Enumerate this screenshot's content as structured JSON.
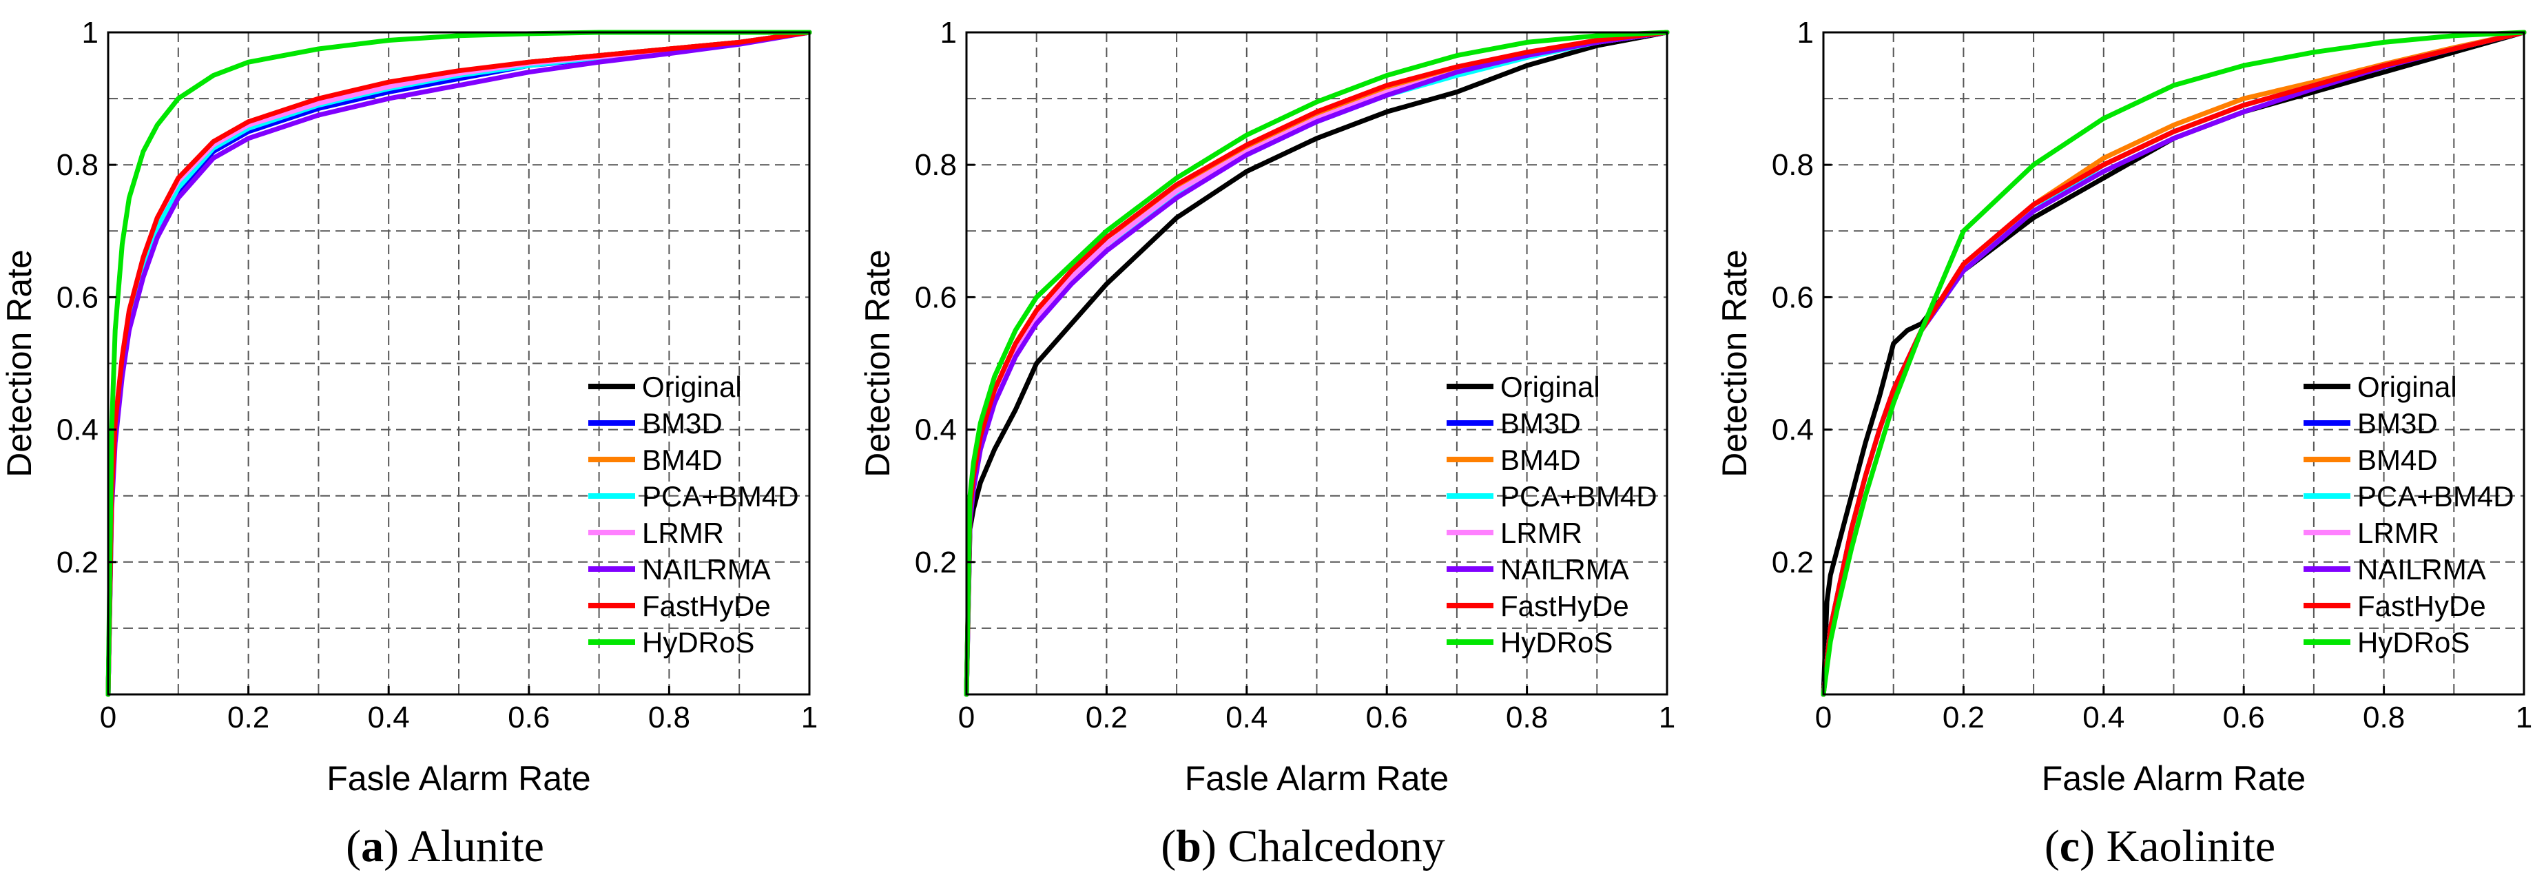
{
  "chart_data": [
    {
      "type": "line",
      "caption_letter": "(a)",
      "caption_title": "Alunite",
      "xlabel": "Fasle Alarm Rate",
      "ylabel": "Detection Rate",
      "xlim": [
        0,
        1
      ],
      "ylim": [
        0,
        1
      ],
      "grid": true,
      "legend_position": "bottom-right",
      "x_ticks": [
        "0",
        "0.2",
        "0.4",
        "0.6",
        "0.8",
        "1"
      ],
      "y_ticks": [
        "0.2",
        "0.4",
        "0.6",
        "0.8",
        "1"
      ],
      "series": [
        {
          "name": "Original",
          "color": "#000000",
          "x": [
            0,
            0.005,
            0.01,
            0.02,
            0.03,
            0.05,
            0.07,
            0.1,
            0.15,
            0.2,
            0.3,
            0.4,
            0.5,
            0.6,
            0.7,
            0.8,
            0.9,
            1
          ],
          "y": [
            0,
            0.3,
            0.4,
            0.5,
            0.57,
            0.65,
            0.71,
            0.77,
            0.83,
            0.86,
            0.895,
            0.92,
            0.94,
            0.955,
            0.965,
            0.975,
            0.985,
            1
          ]
        },
        {
          "name": "BM3D",
          "color": "#0000ff",
          "x": [
            0,
            0.005,
            0.01,
            0.02,
            0.03,
            0.05,
            0.07,
            0.1,
            0.15,
            0.2,
            0.3,
            0.4,
            0.5,
            0.6,
            0.7,
            0.8,
            0.9,
            1
          ],
          "y": [
            0,
            0.29,
            0.39,
            0.49,
            0.56,
            0.64,
            0.7,
            0.76,
            0.82,
            0.85,
            0.885,
            0.91,
            0.93,
            0.95,
            0.96,
            0.97,
            0.985,
            1
          ]
        },
        {
          "name": "BM4D",
          "color": "#ff7f00",
          "x": [
            0,
            0.005,
            0.01,
            0.02,
            0.03,
            0.05,
            0.07,
            0.1,
            0.15,
            0.2,
            0.3,
            0.4,
            0.5,
            0.6,
            0.7,
            0.8,
            0.9,
            1
          ],
          "y": [
            0,
            0.3,
            0.4,
            0.5,
            0.57,
            0.65,
            0.71,
            0.77,
            0.83,
            0.86,
            0.895,
            0.92,
            0.94,
            0.955,
            0.965,
            0.975,
            0.985,
            1
          ]
        },
        {
          "name": "PCA+BM4D",
          "color": "#00ffff",
          "x": [
            0,
            0.005,
            0.01,
            0.02,
            0.03,
            0.05,
            0.07,
            0.1,
            0.15,
            0.2,
            0.3,
            0.4,
            0.5,
            0.6,
            0.7,
            0.8,
            0.9,
            1
          ],
          "y": [
            0,
            0.29,
            0.39,
            0.49,
            0.56,
            0.645,
            0.705,
            0.765,
            0.825,
            0.855,
            0.89,
            0.915,
            0.935,
            0.95,
            0.962,
            0.972,
            0.985,
            1
          ]
        },
        {
          "name": "LRMR",
          "color": "#ff80ff",
          "x": [
            0,
            0.005,
            0.01,
            0.02,
            0.03,
            0.05,
            0.07,
            0.1,
            0.15,
            0.2,
            0.3,
            0.4,
            0.5,
            0.6,
            0.7,
            0.8,
            0.9,
            1
          ],
          "y": [
            0,
            0.31,
            0.41,
            0.51,
            0.58,
            0.66,
            0.72,
            0.775,
            0.83,
            0.86,
            0.893,
            0.918,
            0.938,
            0.953,
            0.963,
            0.973,
            0.985,
            1
          ]
        },
        {
          "name": "NAILRMA",
          "color": "#8000ff",
          "x": [
            0,
            0.005,
            0.01,
            0.02,
            0.03,
            0.05,
            0.07,
            0.1,
            0.15,
            0.2,
            0.3,
            0.4,
            0.5,
            0.6,
            0.7,
            0.8,
            0.9,
            1
          ],
          "y": [
            0,
            0.28,
            0.38,
            0.48,
            0.55,
            0.63,
            0.69,
            0.75,
            0.81,
            0.84,
            0.875,
            0.9,
            0.92,
            0.94,
            0.955,
            0.968,
            0.982,
            1
          ]
        },
        {
          "name": "FastHyDe",
          "color": "#ff0000",
          "x": [
            0,
            0.005,
            0.01,
            0.02,
            0.03,
            0.05,
            0.07,
            0.1,
            0.15,
            0.2,
            0.3,
            0.4,
            0.5,
            0.6,
            0.7,
            0.8,
            0.9,
            1
          ],
          "y": [
            0,
            0.3,
            0.41,
            0.51,
            0.58,
            0.66,
            0.72,
            0.78,
            0.835,
            0.865,
            0.9,
            0.925,
            0.942,
            0.955,
            0.965,
            0.975,
            0.985,
            1
          ]
        },
        {
          "name": "HyDRoS",
          "color": "#00e600",
          "x": [
            0,
            0.005,
            0.01,
            0.02,
            0.03,
            0.05,
            0.07,
            0.1,
            0.15,
            0.2,
            0.3,
            0.4,
            0.5,
            0.6,
            0.7,
            0.8,
            0.9,
            1
          ],
          "y": [
            0,
            0.4,
            0.55,
            0.68,
            0.75,
            0.82,
            0.86,
            0.9,
            0.935,
            0.955,
            0.975,
            0.988,
            0.995,
            0.998,
            1,
            1,
            1,
            1
          ]
        }
      ]
    },
    {
      "type": "line",
      "caption_letter": "(b)",
      "caption_title": "Chalcedony",
      "xlabel": "Fasle Alarm Rate",
      "ylabel": "Detection Rate",
      "xlim": [
        0,
        1
      ],
      "ylim": [
        0,
        1
      ],
      "grid": true,
      "legend_position": "bottom-right",
      "x_ticks": [
        "0",
        "0.2",
        "0.4",
        "0.6",
        "0.8",
        "1"
      ],
      "y_ticks": [
        "0.2",
        "0.4",
        "0.6",
        "0.8",
        "1"
      ],
      "series": [
        {
          "name": "Original",
          "color": "#000000",
          "x": [
            0,
            0.005,
            0.01,
            0.02,
            0.04,
            0.07,
            0.1,
            0.15,
            0.2,
            0.3,
            0.4,
            0.5,
            0.6,
            0.7,
            0.8,
            0.9,
            1
          ],
          "y": [
            0,
            0.25,
            0.28,
            0.32,
            0.37,
            0.43,
            0.5,
            0.56,
            0.62,
            0.72,
            0.79,
            0.84,
            0.88,
            0.91,
            0.95,
            0.98,
            1
          ]
        },
        {
          "name": "BM3D",
          "color": "#0000ff",
          "x": [
            0,
            0.005,
            0.01,
            0.02,
            0.04,
            0.07,
            0.1,
            0.15,
            0.2,
            0.3,
            0.4,
            0.5,
            0.6,
            0.7,
            0.8,
            0.9,
            1
          ],
          "y": [
            0,
            0.27,
            0.32,
            0.38,
            0.45,
            0.52,
            0.57,
            0.63,
            0.68,
            0.76,
            0.82,
            0.87,
            0.91,
            0.94,
            0.965,
            0.985,
            1
          ]
        },
        {
          "name": "BM4D",
          "color": "#ff7f00",
          "x": [
            0,
            0.005,
            0.01,
            0.02,
            0.04,
            0.07,
            0.1,
            0.15,
            0.2,
            0.3,
            0.4,
            0.5,
            0.6,
            0.7,
            0.8,
            0.9,
            1
          ],
          "y": [
            0,
            0.28,
            0.33,
            0.39,
            0.46,
            0.53,
            0.58,
            0.64,
            0.69,
            0.765,
            0.825,
            0.875,
            0.915,
            0.945,
            0.968,
            0.987,
            1
          ]
        },
        {
          "name": "PCA+BM4D",
          "color": "#00ffff",
          "x": [
            0,
            0.005,
            0.01,
            0.02,
            0.04,
            0.07,
            0.1,
            0.15,
            0.2,
            0.3,
            0.4,
            0.5,
            0.6,
            0.7,
            0.8,
            0.9,
            1
          ],
          "y": [
            0,
            0.27,
            0.32,
            0.38,
            0.45,
            0.52,
            0.57,
            0.63,
            0.68,
            0.755,
            0.815,
            0.865,
            0.905,
            0.935,
            0.962,
            0.985,
            1
          ]
        },
        {
          "name": "LRMR",
          "color": "#ff80ff",
          "x": [
            0,
            0.005,
            0.01,
            0.02,
            0.04,
            0.07,
            0.1,
            0.15,
            0.2,
            0.3,
            0.4,
            0.5,
            0.6,
            0.7,
            0.8,
            0.9,
            1
          ],
          "y": [
            0,
            0.27,
            0.32,
            0.38,
            0.45,
            0.52,
            0.57,
            0.63,
            0.68,
            0.76,
            0.82,
            0.87,
            0.91,
            0.94,
            0.965,
            0.985,
            1
          ]
        },
        {
          "name": "NAILRMA",
          "color": "#8000ff",
          "x": [
            0,
            0.005,
            0.01,
            0.02,
            0.04,
            0.07,
            0.1,
            0.15,
            0.2,
            0.3,
            0.4,
            0.5,
            0.6,
            0.7,
            0.8,
            0.9,
            1
          ],
          "y": [
            0,
            0.26,
            0.31,
            0.37,
            0.44,
            0.51,
            0.56,
            0.62,
            0.67,
            0.75,
            0.815,
            0.865,
            0.905,
            0.94,
            0.965,
            0.985,
            1
          ]
        },
        {
          "name": "FastHyDe",
          "color": "#ff0000",
          "x": [
            0,
            0.005,
            0.01,
            0.02,
            0.04,
            0.07,
            0.1,
            0.15,
            0.2,
            0.3,
            0.4,
            0.5,
            0.6,
            0.7,
            0.8,
            0.9,
            1
          ],
          "y": [
            0,
            0.28,
            0.33,
            0.39,
            0.46,
            0.53,
            0.58,
            0.64,
            0.69,
            0.77,
            0.83,
            0.88,
            0.92,
            0.948,
            0.97,
            0.988,
            1
          ]
        },
        {
          "name": "HyDRoS",
          "color": "#00e600",
          "x": [
            0,
            0.005,
            0.01,
            0.02,
            0.04,
            0.07,
            0.1,
            0.15,
            0.2,
            0.3,
            0.4,
            0.5,
            0.6,
            0.7,
            0.8,
            0.9,
            1
          ],
          "y": [
            0,
            0.3,
            0.35,
            0.41,
            0.48,
            0.55,
            0.6,
            0.65,
            0.7,
            0.78,
            0.845,
            0.895,
            0.935,
            0.965,
            0.985,
            0.995,
            1
          ]
        }
      ]
    },
    {
      "type": "line",
      "caption_letter": "(c)",
      "caption_title": "Kaolinite",
      "xlabel": "Fasle Alarm Rate",
      "ylabel": "Detection Rate",
      "xlim": [
        0,
        1
      ],
      "ylim": [
        0,
        1
      ],
      "grid": true,
      "legend_position": "bottom-right",
      "x_ticks": [
        "0",
        "0.2",
        "0.4",
        "0.6",
        "0.8",
        "1"
      ],
      "y_ticks": [
        "0.2",
        "0.4",
        "0.6",
        "0.8",
        "1"
      ],
      "series": [
        {
          "name": "Original",
          "color": "#000000",
          "x": [
            0,
            0.005,
            0.01,
            0.02,
            0.04,
            0.06,
            0.08,
            0.1,
            0.12,
            0.14,
            0.2,
            0.3,
            0.4,
            0.5,
            0.6,
            0.7,
            0.8,
            0.9,
            1
          ],
          "y": [
            0,
            0.14,
            0.18,
            0.22,
            0.3,
            0.38,
            0.45,
            0.53,
            0.55,
            0.56,
            0.64,
            0.72,
            0.78,
            0.84,
            0.88,
            0.91,
            0.94,
            0.97,
            1
          ]
        },
        {
          "name": "BM3D",
          "color": "#0000ff",
          "x": [
            0,
            0.01,
            0.02,
            0.04,
            0.06,
            0.08,
            0.1,
            0.14,
            0.2,
            0.3,
            0.4,
            0.5,
            0.6,
            0.7,
            0.8,
            0.9,
            1
          ],
          "y": [
            0,
            0.1,
            0.15,
            0.25,
            0.33,
            0.4,
            0.46,
            0.55,
            0.65,
            0.74,
            0.8,
            0.85,
            0.89,
            0.92,
            0.95,
            0.975,
            1
          ]
        },
        {
          "name": "BM4D",
          "color": "#ff7f00",
          "x": [
            0,
            0.01,
            0.02,
            0.04,
            0.06,
            0.08,
            0.1,
            0.14,
            0.2,
            0.3,
            0.4,
            0.5,
            0.6,
            0.7,
            0.8,
            0.9,
            1
          ],
          "y": [
            0,
            0.1,
            0.15,
            0.25,
            0.33,
            0.4,
            0.46,
            0.55,
            0.65,
            0.74,
            0.81,
            0.86,
            0.9,
            0.925,
            0.952,
            0.977,
            1
          ]
        },
        {
          "name": "PCA+BM4D",
          "color": "#00ffff",
          "x": [
            0,
            0.01,
            0.02,
            0.04,
            0.06,
            0.08,
            0.1,
            0.14,
            0.2,
            0.3,
            0.4,
            0.5,
            0.6,
            0.7,
            0.8,
            0.9,
            1
          ],
          "y": [
            0,
            0.1,
            0.15,
            0.25,
            0.33,
            0.4,
            0.46,
            0.55,
            0.64,
            0.73,
            0.8,
            0.85,
            0.89,
            0.92,
            0.95,
            0.975,
            1
          ]
        },
        {
          "name": "LRMR",
          "color": "#ff80ff",
          "x": [
            0,
            0.01,
            0.02,
            0.04,
            0.06,
            0.08,
            0.1,
            0.14,
            0.2,
            0.3,
            0.4,
            0.5,
            0.6,
            0.7,
            0.8,
            0.9,
            1
          ],
          "y": [
            0,
            0.1,
            0.15,
            0.25,
            0.33,
            0.4,
            0.46,
            0.55,
            0.65,
            0.74,
            0.8,
            0.85,
            0.89,
            0.92,
            0.95,
            0.975,
            1
          ]
        },
        {
          "name": "NAILRMA",
          "color": "#8000ff",
          "x": [
            0,
            0.01,
            0.02,
            0.04,
            0.06,
            0.08,
            0.1,
            0.14,
            0.2,
            0.3,
            0.4,
            0.5,
            0.6,
            0.7,
            0.8,
            0.9,
            1
          ],
          "y": [
            0,
            0.1,
            0.15,
            0.25,
            0.33,
            0.4,
            0.46,
            0.55,
            0.64,
            0.73,
            0.79,
            0.84,
            0.88,
            0.915,
            0.948,
            0.975,
            1
          ]
        },
        {
          "name": "FastHyDe",
          "color": "#ff0000",
          "x": [
            0,
            0.01,
            0.02,
            0.04,
            0.06,
            0.08,
            0.1,
            0.14,
            0.2,
            0.3,
            0.4,
            0.5,
            0.6,
            0.7,
            0.8,
            0.9,
            1
          ],
          "y": [
            0,
            0.1,
            0.15,
            0.25,
            0.33,
            0.4,
            0.46,
            0.55,
            0.65,
            0.74,
            0.8,
            0.85,
            0.89,
            0.92,
            0.95,
            0.975,
            1
          ]
        },
        {
          "name": "HyDRoS",
          "color": "#00e600",
          "x": [
            0,
            0.01,
            0.02,
            0.04,
            0.06,
            0.08,
            0.1,
            0.14,
            0.2,
            0.3,
            0.4,
            0.5,
            0.6,
            0.7,
            0.8,
            0.9,
            1
          ],
          "y": [
            0,
            0.08,
            0.13,
            0.22,
            0.3,
            0.37,
            0.44,
            0.55,
            0.7,
            0.8,
            0.87,
            0.92,
            0.95,
            0.97,
            0.985,
            0.995,
            1
          ]
        }
      ]
    }
  ]
}
